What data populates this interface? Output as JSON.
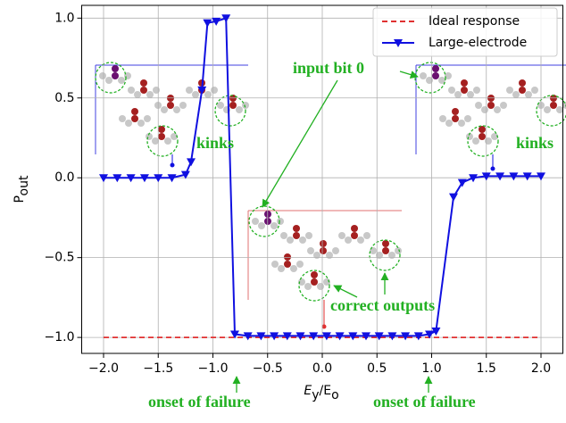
{
  "chart_data": {
    "type": "line",
    "xlabel": [
      "E",
      "y",
      "/E",
      "o"
    ],
    "ylabel": [
      "P",
      "out"
    ],
    "xlim": [
      -2.2,
      2.2
    ],
    "ylim": [
      -1.1,
      1.08
    ],
    "xticks": [
      {
        "value": -2,
        "label": "−2.0"
      },
      {
        "value": -1.5,
        "label": "−1.5"
      },
      {
        "value": -1,
        "label": "−1.0"
      },
      {
        "value": -0.5,
        "label": "−0.5"
      },
      {
        "value": 0,
        "label": "0.0"
      },
      {
        "value": 0.5,
        "label": "0.5"
      },
      {
        "value": 1,
        "label": "1.0"
      },
      {
        "value": 1.5,
        "label": "1.5"
      },
      {
        "value": 2,
        "label": "2.0"
      }
    ],
    "yticks": [
      {
        "value": -1,
        "label": "−1.0"
      },
      {
        "value": -0.5,
        "label": "−0.5"
      },
      {
        "value": 0,
        "label": "0.0"
      },
      {
        "value": 0.5,
        "label": "0.5"
      },
      {
        "value": 1,
        "label": "1.0"
      }
    ],
    "grid": true,
    "legend": "upper right",
    "series": [
      {
        "name": "Ideal response",
        "color": "#e03030",
        "dashed": true,
        "marker": false,
        "x": [
          -2,
          2
        ],
        "values": [
          -1,
          -1
        ]
      },
      {
        "name": "Large-electrode",
        "color": "#1010e0",
        "dashed": false,
        "marker": true,
        "x": [
          -2,
          -1.875,
          -1.75,
          -1.625,
          -1.5,
          -1.375,
          -1.25,
          -1.2,
          -1.1,
          -1.05,
          -0.97,
          -0.88,
          -0.8,
          -0.68,
          -0.56,
          -0.44,
          -0.32,
          -0.2,
          -0.08,
          0.04,
          0.16,
          0.28,
          0.4,
          0.52,
          0.64,
          0.76,
          0.88,
          0.98,
          1.04,
          1.2,
          1.28,
          1.38,
          1.5,
          1.625,
          1.75,
          1.875,
          2
        ],
        "values": [
          0,
          0,
          0,
          0,
          0,
          0,
          0.02,
          0.1,
          0.55,
          0.97,
          0.98,
          1.0,
          -0.98,
          -0.99,
          -0.99,
          -0.99,
          -0.99,
          -0.99,
          -0.99,
          -0.99,
          -0.99,
          -0.99,
          -0.99,
          -0.99,
          -0.99,
          -0.99,
          -0.99,
          -0.98,
          -0.96,
          -0.12,
          -0.03,
          0,
          0.01,
          0.01,
          0.01,
          0.01,
          0.01
        ]
      }
    ],
    "annotations": [
      "input bit 0",
      "kinks",
      "kinks",
      "correct outputs",
      "onset of failure",
      "onset of failure"
    ]
  }
}
